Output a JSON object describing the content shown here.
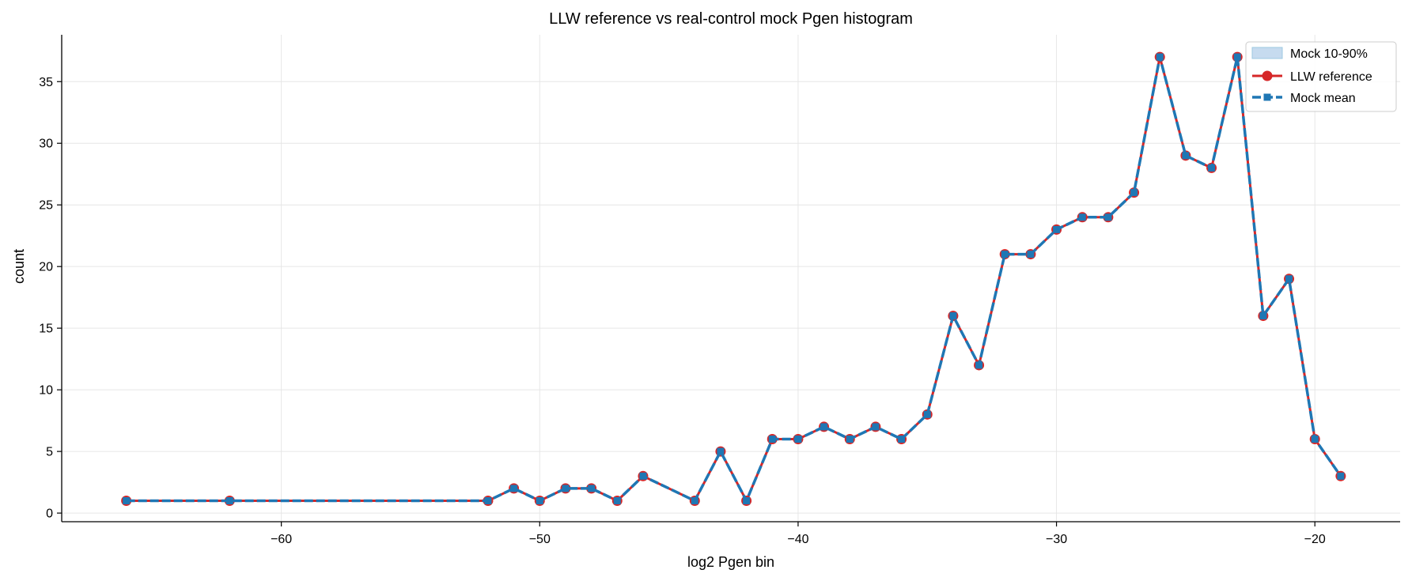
{
  "chart_data": {
    "type": "line",
    "title": "LLW reference vs real-control mock Pgen histogram",
    "xlabel": "log2 Pgen bin",
    "ylabel": "count",
    "xlim": [
      -68.5,
      -16.7
    ],
    "ylim": [
      -0.7,
      38.8
    ],
    "xticks": [
      -60,
      -50,
      -40,
      -30,
      -20
    ],
    "yticks": [
      0,
      5,
      10,
      15,
      20,
      25,
      30,
      35
    ],
    "grid": true,
    "legend_position": "top-right",
    "colors": {
      "reference": "#d62728",
      "mock": "#1f77b4",
      "band": "#c6dbef"
    },
    "x": [
      -66,
      -62,
      -52,
      -51,
      -50,
      -49,
      -48,
      -47,
      -46,
      -44,
      -43,
      -42,
      -41,
      -40,
      -39,
      -38,
      -37,
      -36,
      -35,
      -34,
      -33,
      -32,
      -31,
      -30,
      -29,
      -28,
      -27,
      -26,
      -25,
      -24,
      -23,
      -22,
      -21,
      -20,
      -19
    ],
    "series": [
      {
        "name": "Mock 10-90%",
        "kind": "band",
        "lower": [
          1,
          1,
          1,
          2,
          1,
          2,
          2,
          1,
          3,
          1,
          5,
          1,
          6,
          6,
          7,
          6,
          7,
          6,
          8,
          16,
          12,
          21,
          21,
          23,
          24,
          24,
          26,
          37,
          29,
          28,
          37,
          16,
          19,
          6,
          3
        ],
        "upper": [
          1,
          1,
          1,
          2,
          1,
          2,
          2,
          1,
          3,
          1,
          5,
          1,
          6,
          6,
          7,
          6,
          7,
          6,
          8,
          16,
          12,
          21,
          21,
          23,
          24,
          24,
          26,
          37,
          29,
          28,
          37,
          16,
          19,
          6,
          3
        ]
      },
      {
        "name": "LLW reference",
        "kind": "line",
        "values": [
          1,
          1,
          1,
          2,
          1,
          2,
          2,
          1,
          3,
          1,
          5,
          1,
          6,
          6,
          7,
          6,
          7,
          6,
          8,
          16,
          12,
          21,
          21,
          23,
          24,
          24,
          26,
          37,
          29,
          28,
          37,
          16,
          19,
          6,
          3
        ]
      },
      {
        "name": "Mock mean",
        "kind": "line",
        "values": [
          1,
          1,
          1,
          2,
          1,
          2,
          2,
          1,
          3,
          1,
          5,
          1,
          6,
          6,
          7,
          6,
          7,
          6,
          8,
          16,
          12,
          21,
          21,
          23,
          24,
          24,
          26,
          37,
          29,
          28,
          37,
          16,
          19,
          6,
          3
        ]
      }
    ]
  }
}
